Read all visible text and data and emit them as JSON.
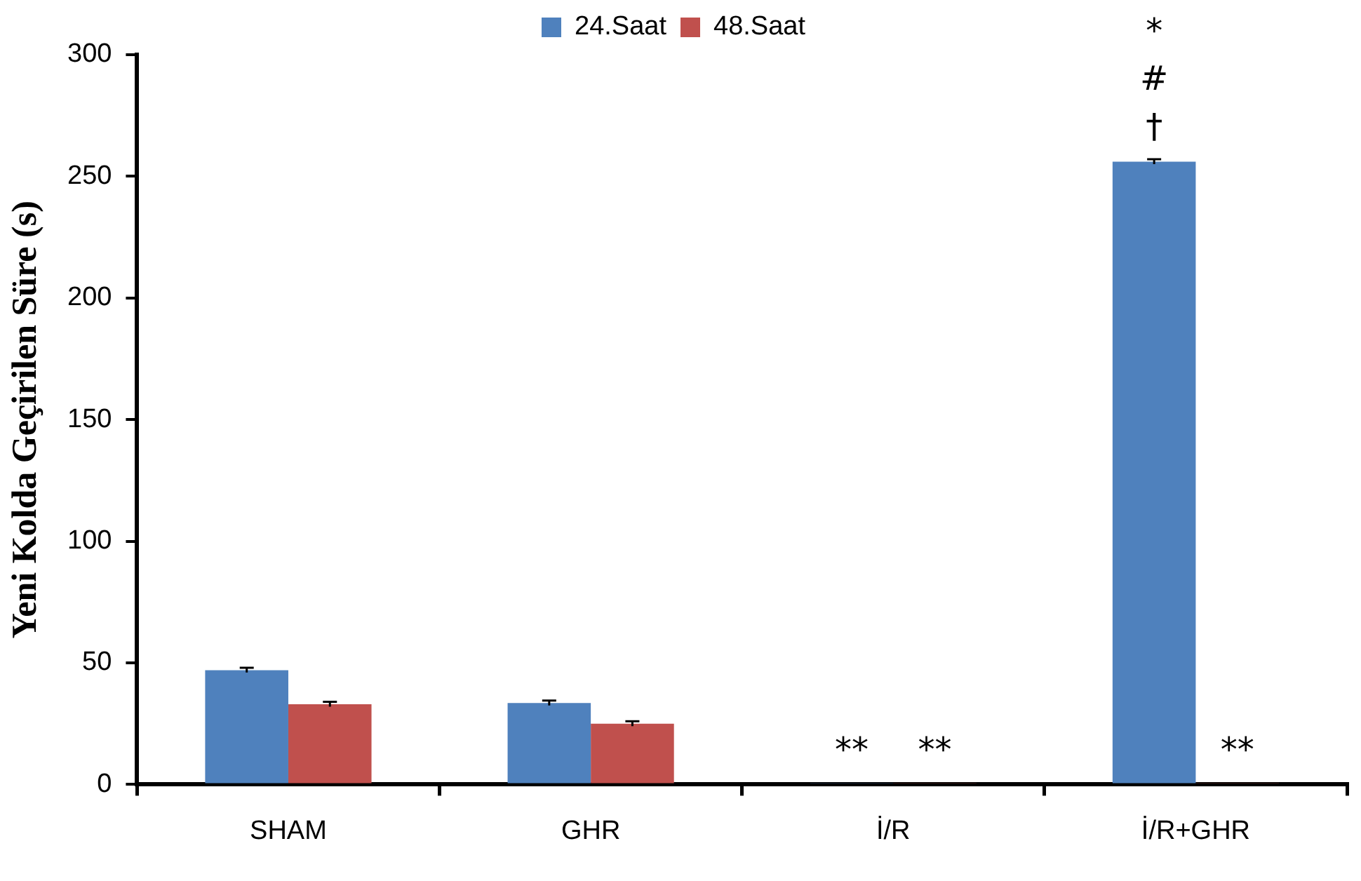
{
  "chart_data": {
    "type": "bar",
    "ylabel": "Yeni Kolda Geçirilen Süre (s)",
    "categories": [
      "SHAM",
      "GHR",
      "İ/R",
      "İ/R+GHR"
    ],
    "series": [
      {
        "name": "24.Saat",
        "color": "#4f81bd",
        "values": [
          47,
          33.5,
          0.5,
          256
        ],
        "errors": [
          1,
          1,
          null,
          1
        ],
        "value_labels": [
          null,
          null,
          "**",
          "*\n#\n†"
        ]
      },
      {
        "name": "48.Saat",
        "color": "#c0504d",
        "values": [
          33,
          25,
          0.5,
          0.5
        ],
        "errors": [
          1,
          1,
          null,
          null
        ],
        "value_labels": [
          null,
          null,
          "**",
          "**"
        ]
      }
    ],
    "ylim": [
      0,
      300
    ],
    "yticks": [
      0,
      50,
      100,
      150,
      200,
      250,
      300
    ],
    "grid": false,
    "legend": "top"
  }
}
